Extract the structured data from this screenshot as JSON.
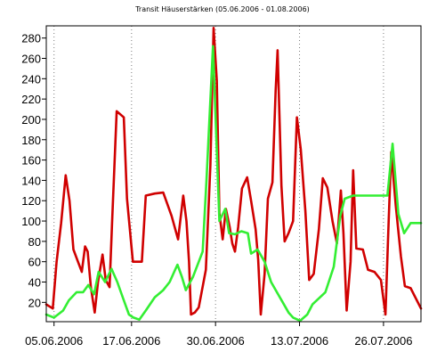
{
  "chart_data": {
    "type": "line",
    "title": "Transit Häuserstärken (05.06.2006 - 01.08.2006)",
    "xlabel": "",
    "ylabel": "",
    "x_ticks": [
      "05.06.2006",
      "17.06.2006",
      "30.06.2006",
      "13.07.2006",
      "26.07.2006"
    ],
    "x_tick_days": [
      0,
      12,
      25,
      38,
      51
    ],
    "xlim": [
      -1.2,
      56.8
    ],
    "y_ticks": [
      20,
      40,
      60,
      80,
      100,
      120,
      140,
      160,
      180,
      200,
      220,
      240,
      260,
      280
    ],
    "ylim": [
      1,
      292
    ],
    "grid": "vertical dotted",
    "legend": "none",
    "series": [
      {
        "color": "#d00000",
        "points": [
          [
            -1.2,
            18
          ],
          [
            -0.2,
            14
          ],
          [
            0.4,
            60
          ],
          [
            1.1,
            98
          ],
          [
            1.8,
            145
          ],
          [
            2.4,
            120
          ],
          [
            3.0,
            72
          ],
          [
            3.7,
            60
          ],
          [
            4.3,
            50
          ],
          [
            4.8,
            75
          ],
          [
            5.2,
            70
          ],
          [
            5.7,
            35
          ],
          [
            6.3,
            10
          ],
          [
            6.8,
            40
          ],
          [
            7.5,
            67
          ],
          [
            8.0,
            42
          ],
          [
            8.6,
            35
          ],
          [
            9.0,
            100
          ],
          [
            9.7,
            208
          ],
          [
            10.8,
            202
          ],
          [
            11.3,
            122
          ],
          [
            12.2,
            60
          ],
          [
            13.6,
            60
          ],
          [
            14.2,
            125
          ],
          [
            15.6,
            127
          ],
          [
            16.9,
            128
          ],
          [
            18.2,
            105
          ],
          [
            19.2,
            82
          ],
          [
            20.0,
            125
          ],
          [
            20.5,
            100
          ],
          [
            20.9,
            60
          ],
          [
            21.2,
            8
          ],
          [
            21.8,
            10
          ],
          [
            22.4,
            15
          ],
          [
            23.5,
            52
          ],
          [
            24.2,
            155
          ],
          [
            24.7,
            290
          ],
          [
            25.2,
            238
          ],
          [
            25.6,
            108
          ],
          [
            26.1,
            82
          ],
          [
            26.6,
            112
          ],
          [
            27.2,
            94
          ],
          [
            27.6,
            78
          ],
          [
            28.0,
            70
          ],
          [
            28.5,
            94
          ],
          [
            29.1,
            132
          ],
          [
            29.9,
            143
          ],
          [
            30.5,
            120
          ],
          [
            31.2,
            92
          ],
          [
            31.6,
            62
          ],
          [
            32.0,
            8
          ],
          [
            32.6,
            48
          ],
          [
            33.1,
            122
          ],
          [
            33.8,
            138
          ],
          [
            34.3,
            228
          ],
          [
            34.6,
            268
          ],
          [
            35.2,
            135
          ],
          [
            35.7,
            80
          ],
          [
            36.3,
            88
          ],
          [
            37.0,
            100
          ],
          [
            37.6,
            202
          ],
          [
            38.2,
            170
          ],
          [
            38.9,
            110
          ],
          [
            39.5,
            42
          ],
          [
            40.2,
            48
          ],
          [
            41.0,
            92
          ],
          [
            41.6,
            142
          ],
          [
            42.3,
            133
          ],
          [
            43.1,
            100
          ],
          [
            43.8,
            78
          ],
          [
            44.4,
            130
          ],
          [
            44.8,
            88
          ],
          [
            45.3,
            12
          ],
          [
            45.9,
            60
          ],
          [
            46.3,
            150
          ],
          [
            46.8,
            73
          ],
          [
            47.8,
            72
          ],
          [
            48.6,
            52
          ],
          [
            49.6,
            50
          ],
          [
            50.6,
            42
          ],
          [
            51.3,
            8
          ],
          [
            51.8,
            100
          ],
          [
            52.2,
            168
          ],
          [
            52.9,
            115
          ],
          [
            53.7,
            65
          ],
          [
            54.3,
            36
          ],
          [
            55.2,
            34
          ],
          [
            56.8,
            14
          ]
        ]
      },
      {
        "color": "#33ee33",
        "points": [
          [
            -1.2,
            8
          ],
          [
            0.0,
            5
          ],
          [
            1.4,
            12
          ],
          [
            2.3,
            22
          ],
          [
            3.5,
            30
          ],
          [
            4.5,
            30
          ],
          [
            5.3,
            37
          ],
          [
            6.2,
            28
          ],
          [
            6.9,
            50
          ],
          [
            7.9,
            40
          ],
          [
            8.9,
            53
          ],
          [
            9.8,
            40
          ],
          [
            10.8,
            22
          ],
          [
            11.6,
            8
          ],
          [
            12.3,
            5
          ],
          [
            13.2,
            3
          ],
          [
            14.2,
            12
          ],
          [
            15.6,
            25
          ],
          [
            16.9,
            32
          ],
          [
            17.9,
            40
          ],
          [
            18.6,
            50
          ],
          [
            19.1,
            57
          ],
          [
            19.8,
            45
          ],
          [
            20.4,
            32
          ],
          [
            21.5,
            45
          ],
          [
            23.0,
            70
          ],
          [
            23.6,
            140
          ],
          [
            24.6,
            272
          ],
          [
            25.6,
            100
          ],
          [
            26.5,
            112
          ],
          [
            27.1,
            88
          ],
          [
            28.0,
            87
          ],
          [
            29.0,
            90
          ],
          [
            30.0,
            88
          ],
          [
            30.5,
            68
          ],
          [
            31.5,
            72
          ],
          [
            32.6,
            60
          ],
          [
            33.6,
            40
          ],
          [
            34.5,
            30
          ],
          [
            35.4,
            20
          ],
          [
            36.3,
            10
          ],
          [
            37.0,
            5
          ],
          [
            38.1,
            2
          ],
          [
            39.2,
            8
          ],
          [
            40.0,
            18
          ],
          [
            41.0,
            24
          ],
          [
            42.0,
            30
          ],
          [
            43.3,
            55
          ],
          [
            44.3,
            105
          ],
          [
            45.0,
            122
          ],
          [
            46.3,
            125
          ],
          [
            47.6,
            125
          ],
          [
            48.9,
            125
          ],
          [
            50.2,
            125
          ],
          [
            51.6,
            125
          ],
          [
            52.4,
            176
          ],
          [
            53.3,
            107
          ],
          [
            54.2,
            88
          ],
          [
            55.2,
            98
          ],
          [
            56.8,
            98
          ]
        ]
      }
    ]
  }
}
